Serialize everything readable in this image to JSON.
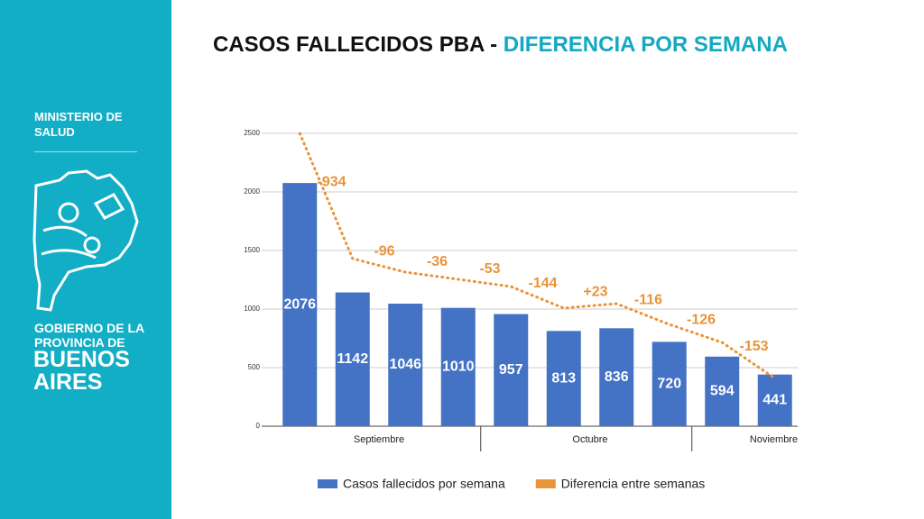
{
  "side": {
    "ministry": "MINISTERIO DE SALUD",
    "government": "GOBIERNO DE LA PROVINCIA DE",
    "province": "BUENOS AIRES"
  },
  "chart_data": {
    "type": "bar",
    "title": "CASOS FALLECIDOS PBA - ",
    "subtitle": "DIFERENCIA POR SEMANA",
    "groups": [
      {
        "label": "Septiembre",
        "count": 4
      },
      {
        "label": "Octubre",
        "count": 4
      },
      {
        "label": "Noviembre",
        "count": 2
      }
    ],
    "series": [
      {
        "name": "Casos fallecidos por semana",
        "color": "#4472c4",
        "type": "bar",
        "values": [
          2076,
          1142,
          1046,
          1010,
          957,
          813,
          836,
          720,
          594,
          441
        ]
      },
      {
        "name": "Diferencia entre semanas",
        "color": "#e8943a",
        "type": "line",
        "values": [
          2500,
          1431,
          1315,
          1254,
          1192,
          1008,
          1046,
          869,
          715,
          408
        ]
      }
    ],
    "annotations": {
      "values": [
        -934,
        -96,
        -36,
        -53,
        -144,
        23,
        -116,
        -126,
        -153
      ],
      "value_labels": [
        "-934",
        "-96",
        "-36",
        "-53",
        "-144",
        "+23",
        "-116",
        "-126",
        "-153"
      ]
    },
    "ylim": [
      0,
      2500
    ],
    "yticks": [
      0,
      500,
      1000,
      1500,
      2000,
      2500
    ],
    "grid": true
  }
}
